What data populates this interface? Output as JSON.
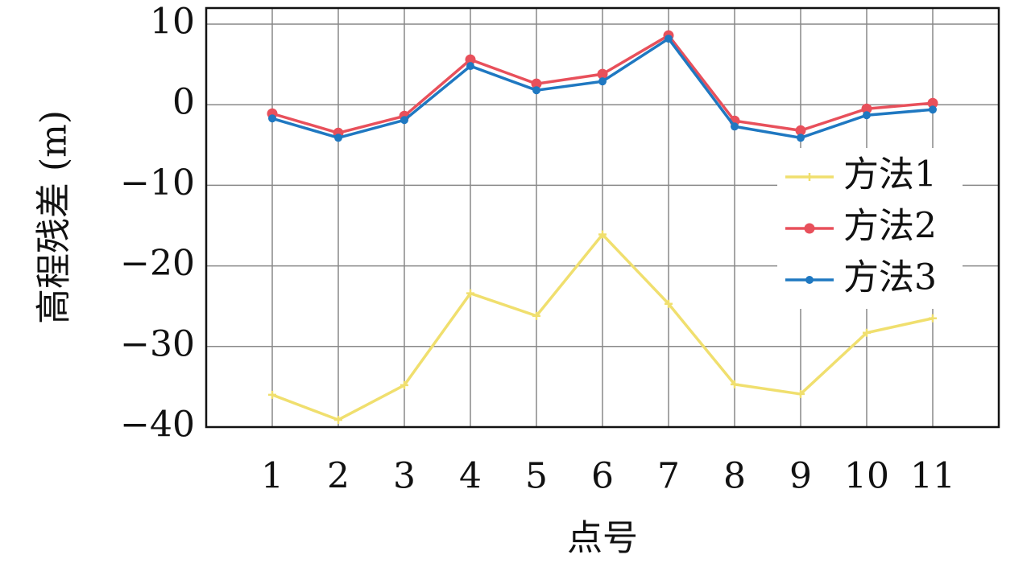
{
  "chart_data": {
    "type": "line",
    "x_label": "点号",
    "y_label": "高程残差 (m)",
    "x": [
      1,
      2,
      3,
      4,
      5,
      6,
      7,
      8,
      9,
      10,
      11
    ],
    "xlim": [
      0,
      12
    ],
    "xticks": [
      1,
      2,
      3,
      4,
      5,
      6,
      7,
      8,
      9,
      10,
      11
    ],
    "ylim": [
      -40,
      12
    ],
    "yticks": [
      {
        "value": -40,
        "label": "−40"
      },
      {
        "value": -30,
        "label": "−30"
      },
      {
        "value": -20,
        "label": "−20"
      },
      {
        "value": -10,
        "label": "−10"
      },
      0,
      10
    ],
    "grid": true,
    "legend": "right",
    "series": [
      {
        "name": "方法1",
        "color": "#f0df6e",
        "marker": "plus",
        "values": [
          -36,
          -39.1,
          -34.8,
          -23.4,
          -26.2,
          -16.1,
          -24.7,
          -34.7,
          -35.9,
          -28.3,
          -26.5
        ]
      },
      {
        "name": "方法2",
        "color": "#e8505b",
        "marker": "circle",
        "values": [
          -1.1,
          -3.5,
          -1.4,
          5.6,
          2.6,
          3.8,
          8.6,
          -2.0,
          -3.2,
          -0.5,
          0.2
        ]
      },
      {
        "name": "方法3",
        "color": "#1f78c1",
        "marker": "dot",
        "values": [
          -1.7,
          -4.1,
          -1.9,
          4.8,
          1.8,
          2.9,
          8.2,
          -2.7,
          -4.1,
          -1.3,
          -0.6
        ]
      }
    ]
  }
}
